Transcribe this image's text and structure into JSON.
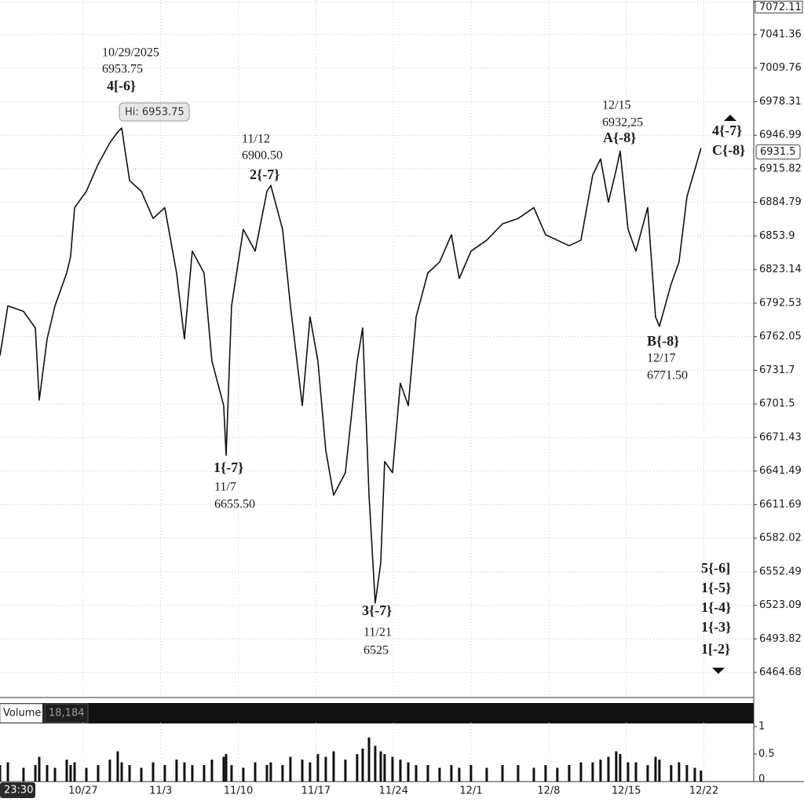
{
  "chart_data": {
    "type": "line",
    "log_scale": true,
    "grid": true,
    "color": "#111111",
    "x": [
      292.5,
      293.21,
      294.62,
      295.69,
      296.04,
      296.75,
      297.46,
      298.52,
      298.87,
      299.23,
      300.29,
      301.35,
      302.41,
      303.12,
      303.48,
      304.19,
      305.25,
      306.31,
      307.37,
      308.43,
      309.14,
      309.85,
      310.91,
      311.62,
      312.68,
      312.9,
      313.39,
      314.45,
      315.52,
      316.58,
      316.93,
      317.99,
      318.7,
      319.77,
      320.47,
      321.18,
      321.89,
      322.6,
      323.66,
      324.72,
      325.22,
      325.79,
      326.35,
      326.85,
      327.2,
      327.91,
      328.62,
      329.33,
      330.04,
      331.1,
      332.16,
      333.22,
      333.93,
      334.99,
      336.41,
      337.83,
      339.24,
      340.66,
      341.72,
      342.78,
      343.85,
      344.91,
      345.97,
      346.68,
      347.39,
      348.09,
      348.45,
      349.16,
      349.87,
      350.93,
      351.64,
      351.99,
      353.05,
      353.76,
      354.47,
      355.18,
      355.74
    ],
    "values": [
      6745,
      6790,
      6785,
      6770,
      6705,
      6760,
      6790,
      6820,
      6835,
      6880,
      6895,
      6920,
      6940,
      6950,
      6953.75,
      6905,
      6895,
      6870,
      6880,
      6820,
      6760,
      6840,
      6820,
      6740,
      6700,
      6655.5,
      6790,
      6860,
      6840,
      6895,
      6900.5,
      6860,
      6790,
      6700,
      6780,
      6740,
      6660,
      6620,
      6640,
      6740,
      6770,
      6620,
      6525,
      6560,
      6650,
      6640,
      6720,
      6700,
      6780,
      6820,
      6830,
      6855,
      6815,
      6840,
      6850,
      6865,
      6870,
      6880,
      6855,
      6850,
      6845,
      6850,
      6910,
      6925,
      6885,
      6915,
      6932.25,
      6860,
      6840,
      6880,
      6780,
      6771.5,
      6810,
      6830,
      6890,
      6915,
      6935
    ],
    "xlim": [
      292.5,
      360.5
    ],
    "xticks": [
      {
        "value": 300,
        "label": "10/27"
      },
      {
        "value": 307,
        "label": "11/3"
      },
      {
        "value": 314,
        "label": "11/10"
      },
      {
        "value": 321,
        "label": "11/17"
      },
      {
        "value": 328,
        "label": "11/24"
      },
      {
        "value": 335,
        "label": "12/1"
      },
      {
        "value": 342,
        "label": "12/8"
      },
      {
        "value": 349,
        "label": "12/15"
      },
      {
        "value": 356,
        "label": "12/22"
      }
    ],
    "ylim": [
      6443,
      7074
    ],
    "yticks": [
      7072.11,
      7041.36,
      7009.76,
      6978.31,
      6946.99,
      6915.82,
      6884.79,
      6853.9,
      6823.14,
      6792.53,
      6762.05,
      6731.7,
      6701.5,
      6671.43,
      6641.49,
      6611.69,
      6582.02,
      6552.49,
      6523.09,
      6493.82,
      6464.68
    ],
    "last_price": 6931.5,
    "time_label": "23:30",
    "high_label": "Hi: 6953.75",
    "annotations": [
      {
        "lines": [
          "10/29/2025",
          "6953.75",
          "4[-6}"
        ]
      },
      {
        "lines": [
          "11/12",
          "6900.50",
          "2{-7}"
        ]
      },
      {
        "lines": [
          "1{-7}",
          "11/7",
          "6655.50"
        ]
      },
      {
        "lines": [
          "3{-7}",
          "11/21",
          "6525"
        ]
      },
      {
        "lines": [
          "12/15",
          "6932,25",
          "A{-8}"
        ]
      },
      {
        "lines": [
          "4{-7}",
          "C{-8}"
        ]
      },
      {
        "lines": [
          "B{-8}",
          "12/17",
          "6771.50"
        ]
      },
      {
        "lines": [
          "5{-6]",
          "1{-5}",
          "1{-4}",
          "1{-3}",
          "1[-2}"
        ]
      }
    ],
    "volume": {
      "label": "Volume",
      "value_label": "18,184",
      "values": [
        0.3,
        0.35,
        0.25,
        0.3,
        0.45,
        0.3,
        0.25,
        0.4,
        0.3,
        0.35,
        0.25,
        0.3,
        0.4,
        0.55,
        0.35,
        0.3,
        0.25,
        0.35,
        0.3,
        0.4,
        0.35,
        0.3,
        0.3,
        0.4,
        0.45,
        0.5,
        0.3,
        0.25,
        0.35,
        0.3,
        0.35,
        0.3,
        0.45,
        0.4,
        0.35,
        0.5,
        0.45,
        0.55,
        0.4,
        0.5,
        0.6,
        0.8,
        0.65,
        0.55,
        0.5,
        0.45,
        0.4,
        0.35,
        0.3,
        0.3,
        0.25,
        0.3,
        0.25,
        0.3,
        0.25,
        0.3,
        0.3,
        0.25,
        0.3,
        0.25,
        0.3,
        0.35,
        0.35,
        0.4,
        0.45,
        0.55,
        0.5,
        0.35,
        0.35,
        0.3,
        0.45,
        0.4,
        0.3,
        0.35,
        0.3,
        0.25,
        0.2
      ],
      "ylim": [
        0,
        1
      ],
      "yticks": [
        0,
        0.5,
        1
      ]
    }
  }
}
